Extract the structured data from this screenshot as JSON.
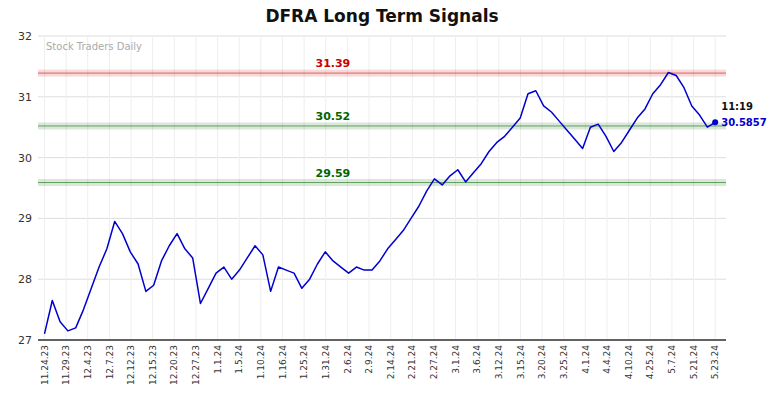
{
  "chart_data": {
    "type": "line",
    "title": "DFRA Long Term Signals",
    "color": "#0000CC",
    "values": [
      27.1,
      27.65,
      27.3,
      27.15,
      27.2,
      27.5,
      27.85,
      28.2,
      28.5,
      28.95,
      28.75,
      28.45,
      28.25,
      27.8,
      27.9,
      28.3,
      28.55,
      28.75,
      28.5,
      28.35,
      27.6,
      27.85,
      28.1,
      28.2,
      28.0,
      28.15,
      28.35,
      28.55,
      28.4,
      27.8,
      28.2,
      28.15,
      28.1,
      27.85,
      28.0,
      28.25,
      28.45,
      28.3,
      28.2,
      28.1,
      28.2,
      28.15,
      28.15,
      28.3,
      28.5,
      28.65,
      28.8,
      29.0,
      29.2,
      29.45,
      29.65,
      29.55,
      29.7,
      29.8,
      29.6,
      29.75,
      29.9,
      30.1,
      30.25,
      30.35,
      30.5,
      30.65,
      31.05,
      31.1,
      30.85,
      30.75,
      30.6,
      30.45,
      30.3,
      30.15,
      30.5,
      30.55,
      30.35,
      30.1,
      30.25,
      30.45,
      30.65,
      30.8,
      31.05,
      31.2,
      31.4,
      31.35,
      31.15,
      30.85,
      30.7,
      30.5,
      30.58
    ],
    "xlim": [
      -0.3,
      31.5
    ],
    "xticks": [
      {
        "value": 0,
        "label": "11.24.23"
      },
      {
        "value": 1,
        "label": "11.29.23"
      },
      {
        "value": 2,
        "label": "12.4.23"
      },
      {
        "value": 3,
        "label": "12.7.23"
      },
      {
        "value": 4,
        "label": "12.12.23"
      },
      {
        "value": 5,
        "label": "12.15.23"
      },
      {
        "value": 6,
        "label": "12.20.23"
      },
      {
        "value": 7,
        "label": "12.27.23"
      },
      {
        "value": 8,
        "label": "1.1.24"
      },
      {
        "value": 9,
        "label": "1.5.24"
      },
      {
        "value": 10,
        "label": "1.10.24"
      },
      {
        "value": 11,
        "label": "1.16.24"
      },
      {
        "value": 12,
        "label": "1.25.24"
      },
      {
        "value": 13,
        "label": "1.31.24"
      },
      {
        "value": 14,
        "label": "2.6.24"
      },
      {
        "value": 15,
        "label": "2.9.24"
      },
      {
        "value": 16,
        "label": "2.14.24"
      },
      {
        "value": 17,
        "label": "2.21.24"
      },
      {
        "value": 18,
        "label": "2.27.24"
      },
      {
        "value": 19,
        "label": "3.1.24"
      },
      {
        "value": 20,
        "label": "3.6.24"
      },
      {
        "value": 21,
        "label": "3.12.24"
      },
      {
        "value": 22,
        "label": "3.15.24"
      },
      {
        "value": 23,
        "label": "3.20.24"
      },
      {
        "value": 24,
        "label": "3.25.24"
      },
      {
        "value": 25,
        "label": "4.1.24"
      },
      {
        "value": 26,
        "label": "4.4.24"
      },
      {
        "value": 27,
        "label": "4.10.24"
      },
      {
        "value": 28,
        "label": "4.25.24"
      },
      {
        "value": 29,
        "label": "5.7.24"
      },
      {
        "value": 30,
        "label": "5.21.24"
      },
      {
        "value": 31,
        "label": "5.23.24"
      }
    ],
    "ylim": [
      27.0,
      32.0
    ],
    "yticks": [
      27,
      28,
      29,
      30,
      31,
      32
    ],
    "grid": true,
    "annotations": [
      {
        "y": 31.39,
        "text": "31.39",
        "color": "#cc0000"
      },
      {
        "y": 30.52,
        "text": "30.52",
        "color": "#006600"
      },
      {
        "y": 29.59,
        "text": "29.59",
        "color": "#006600"
      },
      {
        "text": "11:19"
      },
      {
        "text": "30.5857"
      },
      {
        "text": "Stock Traders Daily"
      }
    ]
  }
}
